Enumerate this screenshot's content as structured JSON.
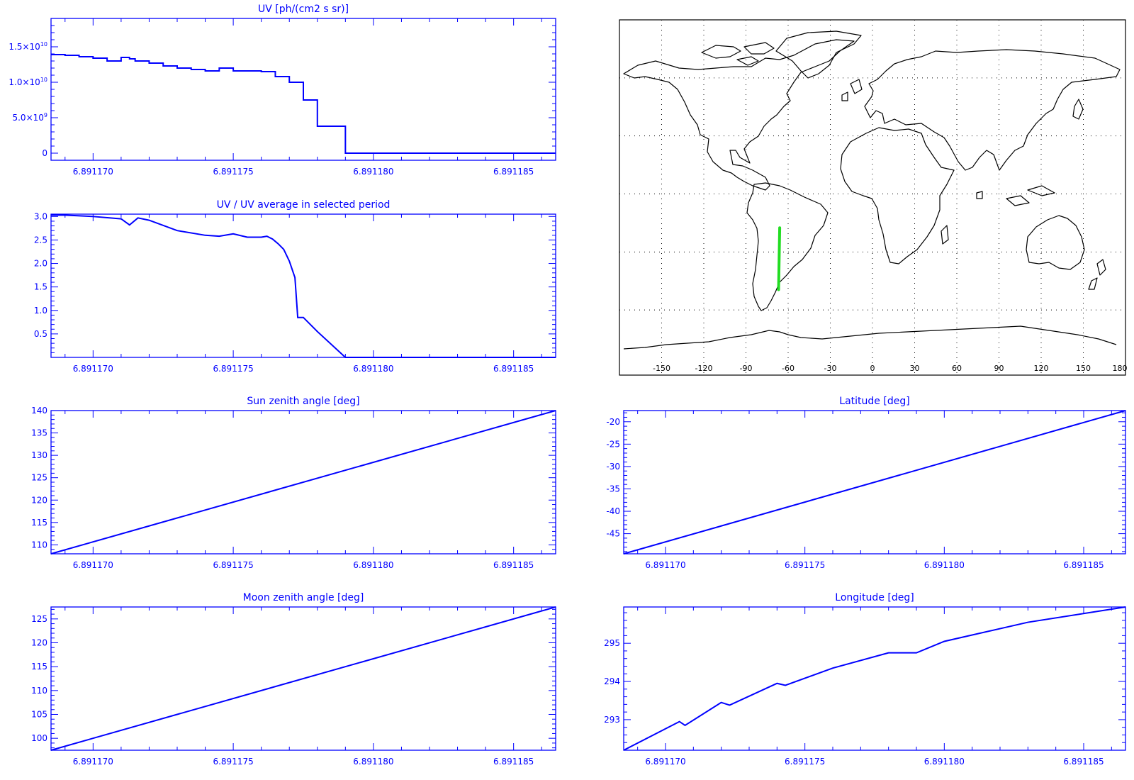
{
  "colors": {
    "line": "#0000ff",
    "track": "#22dd22",
    "map": "#000000"
  },
  "chart_data": [
    {
      "id": "uv",
      "type": "line",
      "step": true,
      "title": "UV [ph/(cm2 s sr)]",
      "xlim": [
        6.8911685,
        6.8911865
      ],
      "ylim": [
        -1000000000.0,
        19000000000.0
      ],
      "xticks": [
        6.89117,
        6.891175,
        6.89118,
        6.891185
      ],
      "xtick_labels": [
        "6.891170",
        "6.891175",
        "6.891180",
        "6.891185"
      ],
      "yticks": [
        0,
        5000000000.0,
        10000000000.0,
        15000000000.0
      ],
      "ytick_labels": [
        {
          "m": "0",
          "e": ""
        },
        {
          "m": "5.0×10",
          "e": "9"
        },
        {
          "m": "1.0×10",
          "e": "10"
        },
        {
          "m": "1.5×10",
          "e": "10"
        }
      ],
      "x": [
        6.8911685,
        6.891169,
        6.8911695,
        6.89117,
        6.8911705,
        6.891171,
        6.8911713,
        6.8911715,
        6.891172,
        6.8911725,
        6.891173,
        6.8911735,
        6.891174,
        6.8911745,
        6.891175,
        6.8911755,
        6.891176,
        6.8911765,
        6.891177,
        6.8911775,
        6.891178,
        6.8911785,
        6.891179,
        6.8911795,
        6.89118,
        6.8911805,
        6.891181,
        6.8911815,
        6.891182,
        6.8911825,
        6.891183,
        6.8911835,
        6.891184,
        6.8911845,
        6.891185,
        6.8911855,
        6.8911865
      ],
      "y": [
        13900000000.0,
        13800000000.0,
        13600000000.0,
        13400000000.0,
        13000000000.0,
        13500000000.0,
        13300000000.0,
        13000000000.0,
        12700000000.0,
        12300000000.0,
        12000000000.0,
        11800000000.0,
        11600000000.0,
        12000000000.0,
        11600000000.0,
        11600000000.0,
        11500000000.0,
        10800000000.0,
        10000000000.0,
        7500000000.0,
        3800000000.0,
        3800000000.0,
        0,
        0,
        0,
        0,
        0,
        0,
        0,
        0,
        0,
        0,
        0,
        0,
        0,
        0,
        0
      ]
    },
    {
      "id": "ratio",
      "type": "line",
      "title": "UV / UV average in selected period",
      "xlim": [
        6.8911685,
        6.8911865
      ],
      "ylim": [
        0.0,
        3.05
      ],
      "xticks": [
        6.89117,
        6.891175,
        6.89118,
        6.891185
      ],
      "xtick_labels": [
        "6.891170",
        "6.891175",
        "6.891180",
        "6.891185"
      ],
      "yticks": [
        0.5,
        1.0,
        1.5,
        2.0,
        2.5,
        3.0
      ],
      "ytick_labels": [
        "0.5",
        "1.0",
        "1.5",
        "2.0",
        "2.5",
        "3.0"
      ],
      "x": [
        6.8911685,
        6.891169,
        6.89117,
        6.891171,
        6.8911713,
        6.8911716,
        6.891172,
        6.891173,
        6.891174,
        6.8911745,
        6.891175,
        6.8911755,
        6.891176,
        6.8911762,
        6.8911764,
        6.8911766,
        6.8911768,
        6.891177,
        6.8911772,
        6.8911773,
        6.8911774,
        6.8911775,
        6.891178,
        6.891179,
        6.89118,
        6.891181,
        6.891182,
        6.891183,
        6.891184,
        6.891185,
        6.8911865
      ],
      "y": [
        3.03,
        3.03,
        3.0,
        2.95,
        2.82,
        2.97,
        2.92,
        2.7,
        2.6,
        2.58,
        2.63,
        2.56,
        2.56,
        2.58,
        2.52,
        2.42,
        2.3,
        2.05,
        1.7,
        0.85,
        0.85,
        0.85,
        0.55,
        0.0,
        0.0,
        0.0,
        0.0,
        0.0,
        0.0,
        0.0,
        0.0
      ]
    },
    {
      "id": "sza",
      "type": "line",
      "title": "Sun zenith angle [deg]",
      "xlim": [
        6.8911685,
        6.8911865
      ],
      "ylim": [
        108.0,
        140.0
      ],
      "xticks": [
        6.89117,
        6.891175,
        6.89118,
        6.891185
      ],
      "xtick_labels": [
        "6.891170",
        "6.891175",
        "6.891180",
        "6.891185"
      ],
      "yticks": [
        110,
        115,
        120,
        125,
        130,
        135,
        140
      ],
      "ytick_labels": [
        "110",
        "115",
        "120",
        "125",
        "130",
        "135",
        "140"
      ],
      "x": [
        6.8911685,
        6.8911865
      ],
      "y": [
        108.0,
        140.0
      ]
    },
    {
      "id": "mza",
      "type": "line",
      "title": "Moon zenith angle [deg]",
      "xlim": [
        6.8911685,
        6.8911865
      ],
      "ylim": [
        97.5,
        127.5
      ],
      "xticks": [
        6.89117,
        6.891175,
        6.89118,
        6.891185
      ],
      "xtick_labels": [
        "6.891170",
        "6.891175",
        "6.891180",
        "6.891185"
      ],
      "yticks": [
        100,
        105,
        110,
        115,
        120,
        125
      ],
      "ytick_labels": [
        "100",
        "105",
        "110",
        "115",
        "120",
        "125"
      ],
      "x": [
        6.8911685,
        6.8911865
      ],
      "y": [
        97.5,
        127.5
      ]
    },
    {
      "id": "lat",
      "type": "line",
      "title": "Latitude [deg]",
      "xlim": [
        6.8911685,
        6.8911865
      ],
      "ylim": [
        -49.5,
        -17.5
      ],
      "xticks": [
        6.89117,
        6.891175,
        6.89118,
        6.891185
      ],
      "xtick_labels": [
        "6.891170",
        "6.891175",
        "6.891180",
        "6.891185"
      ],
      "yticks": [
        -45,
        -40,
        -35,
        -30,
        -25,
        -20
      ],
      "ytick_labels": [
        "-45",
        "-40",
        "-35",
        "-30",
        "-25",
        "-20"
      ],
      "x": [
        6.8911685,
        6.8911865
      ],
      "y": [
        -49.5,
        -17.5
      ]
    },
    {
      "id": "lon",
      "type": "line",
      "title": "Longitude [deg]",
      "xlim": [
        6.8911685,
        6.8911865
      ],
      "ylim": [
        292.2,
        295.95
      ],
      "xticks": [
        6.89117,
        6.891175,
        6.89118,
        6.891185
      ],
      "xtick_labels": [
        "6.891170",
        "6.891175",
        "6.891180",
        "6.891185"
      ],
      "yticks": [
        293,
        294,
        295
      ],
      "ytick_labels": [
        "293",
        "294",
        "295"
      ],
      "x": [
        6.8911685,
        6.8911705,
        6.8911707,
        6.891172,
        6.8911723,
        6.891174,
        6.8911743,
        6.891176,
        6.891178,
        6.891179,
        6.89118,
        6.891183,
        6.8911865
      ],
      "y": [
        292.2,
        292.95,
        292.85,
        293.45,
        293.38,
        293.95,
        293.9,
        294.35,
        294.75,
        294.75,
        295.05,
        295.55,
        295.95
      ]
    }
  ],
  "map": {
    "lon_ticks": [
      -150,
      -120,
      -90,
      -60,
      -30,
      0,
      30,
      60,
      90,
      120,
      150,
      180
    ],
    "lon_labels": [
      "-150",
      "-120",
      "-90",
      "-60",
      "-30",
      "0",
      "30",
      "60",
      "90",
      "120",
      "150",
      "180"
    ],
    "track_lon": [
      -66.8,
      -66.0
    ],
    "track_lat": [
      -49.5,
      -17.5
    ]
  }
}
